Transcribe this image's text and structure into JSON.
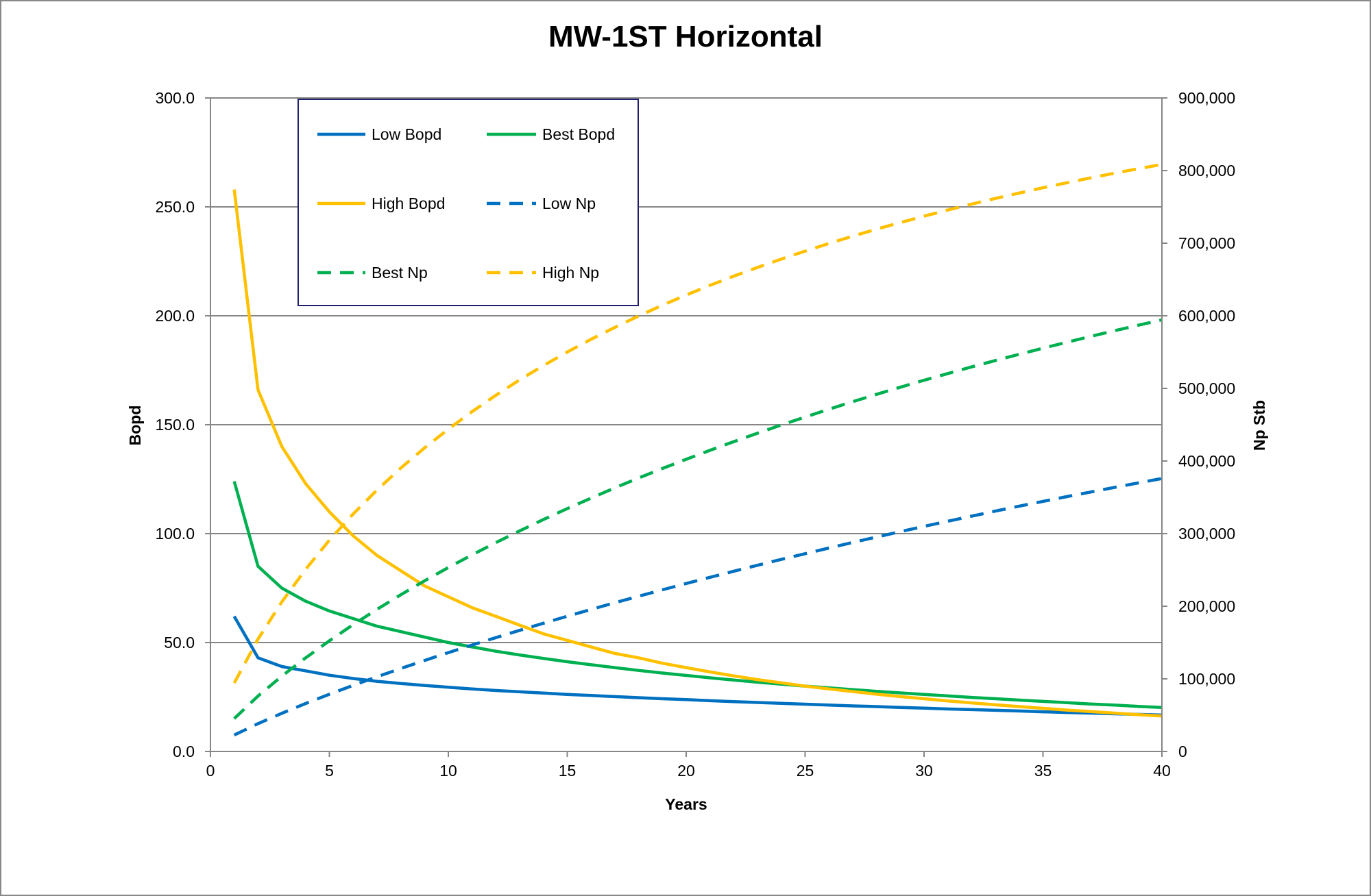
{
  "chart_data": {
    "type": "line",
    "title": "MW-1ST Horizontal",
    "xlabel": "Years",
    "ylabel": "Bopd",
    "y2label": "Np Stb",
    "xlim": [
      0,
      40
    ],
    "ylim": [
      0,
      300
    ],
    "y2lim": [
      0,
      900000
    ],
    "xticks": [
      "0",
      "5",
      "10",
      "15",
      "20",
      "25",
      "30",
      "35",
      "40"
    ],
    "yticks": [
      "0.0",
      "50.0",
      "100.0",
      "150.0",
      "200.0",
      "250.0",
      "300.0"
    ],
    "y2ticks": [
      "0",
      "100,000",
      "200,000",
      "300,000",
      "400,000",
      "500,000",
      "600,000",
      "700,000",
      "800,000",
      "900,000"
    ],
    "grid": "horizontal",
    "legend_placement": "top-left",
    "x": [
      1,
      2,
      3,
      4,
      5,
      6,
      7,
      8,
      9,
      10,
      11,
      12,
      13,
      14,
      15,
      16,
      17,
      18,
      19,
      20,
      21,
      22,
      23,
      24,
      25,
      26,
      27,
      28,
      29,
      30,
      31,
      32,
      33,
      34,
      35,
      36,
      37,
      38,
      39,
      40
    ],
    "series": [
      {
        "name": "Low Bopd",
        "axis": "left",
        "color": "#0070C0",
        "dash": false,
        "values": [
          62,
          43,
          39,
          37,
          35,
          33.5,
          32.2,
          31.2,
          30.3,
          29.5,
          28.7,
          28,
          27.4,
          26.8,
          26.2,
          25.7,
          25.2,
          24.7,
          24.2,
          23.8,
          23.3,
          22.9,
          22.5,
          22.1,
          21.7,
          21.3,
          20.9,
          20.6,
          20.2,
          19.9,
          19.5,
          19.2,
          18.9,
          18.6,
          18.2,
          17.9,
          17.6,
          17.3,
          17,
          16.7
        ]
      },
      {
        "name": "Best Bopd",
        "axis": "left",
        "color": "#00B050",
        "dash": false,
        "values": [
          124,
          85,
          75,
          69,
          64.5,
          61,
          57.5,
          55,
          52.5,
          50,
          48,
          46,
          44.3,
          42.7,
          41.2,
          39.8,
          38.5,
          37.2,
          36,
          34.9,
          33.8,
          32.8,
          31.8,
          30.9,
          30,
          29.2,
          28.4,
          27.6,
          26.9,
          26.2,
          25.5,
          24.8,
          24.2,
          23.6,
          23,
          22.4,
          21.8,
          21.3,
          20.7,
          20.2
        ]
      },
      {
        "name": "High Bopd",
        "axis": "left",
        "color": "#FFC000",
        "dash": false,
        "values": [
          258,
          166,
          140,
          123,
          110,
          99,
          90,
          83,
          76,
          71,
          66,
          62,
          58,
          54,
          51,
          48,
          45,
          43,
          40.5,
          38.5,
          36.5,
          34.7,
          33,
          31.5,
          30,
          28.7,
          27.5,
          26.3,
          25.2,
          24.2,
          23.2,
          22.3,
          21.4,
          20.6,
          19.8,
          19,
          18.3,
          17.6,
          16.9,
          16.3
        ]
      },
      {
        "name": "Low Np",
        "axis": "right",
        "color": "#0070C0",
        "dash": true,
        "values": [
          22600,
          38300,
          52500,
          66000,
          78800,
          91000,
          102800,
          114200,
          125300,
          136100,
          146600,
          156800,
          166800,
          176600,
          186200,
          195600,
          204800,
          213800,
          222600,
          231300,
          239800,
          248200,
          256400,
          264500,
          272400,
          280200,
          287800,
          295300,
          302700,
          310000,
          317100,
          324100,
          331000,
          337800,
          344400,
          350900,
          357300,
          363600,
          369800,
          375900
        ]
      },
      {
        "name": "Best Np",
        "axis": "right",
        "color": "#00B050",
        "dash": true,
        "values": [
          45300,
          76300,
          103700,
          128900,
          152400,
          174700,
          195700,
          215800,
          235000,
          253300,
          270800,
          287600,
          303800,
          319400,
          334400,
          348900,
          363000,
          376600,
          389700,
          402400,
          414700,
          426700,
          438300,
          449600,
          460600,
          471300,
          481700,
          491800,
          501600,
          511200,
          520500,
          529600,
          538400,
          547000,
          555400,
          563600,
          571600,
          579400,
          587000,
          594400
        ]
      },
      {
        "name": "High Np",
        "axis": "right",
        "color": "#FFC000",
        "dash": true,
        "values": [
          94200,
          154800,
          205900,
          250800,
          291000,
          327100,
          360000,
          390300,
          418000,
          443900,
          468000,
          490600,
          511800,
          531500,
          550100,
          567600,
          584000,
          599700,
          614500,
          628600,
          641900,
          654600,
          666600,
          678100,
          689100,
          699600,
          709600,
          719200,
          728400,
          737200,
          745700,
          753800,
          761600,
          769100,
          776300,
          783200,
          789900,
          796300,
          802500,
          808400
        ]
      }
    ]
  }
}
